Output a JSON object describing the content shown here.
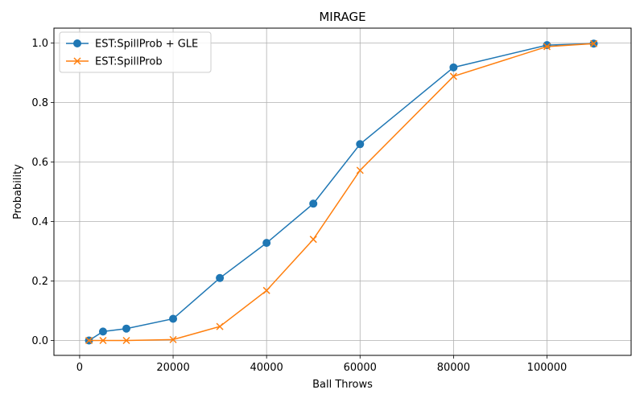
{
  "chart_data": {
    "type": "line",
    "title": "MIRAGE",
    "xlabel": "Ball Throws",
    "ylabel": "Probability",
    "xlim": [
      -5500,
      118000
    ],
    "ylim": [
      -0.05,
      1.05
    ],
    "xticks": [
      0,
      20000,
      40000,
      60000,
      80000,
      100000
    ],
    "yticks": [
      0.0,
      0.2,
      0.4,
      0.6,
      0.8,
      1.0
    ],
    "x_tick_labels": [
      "0",
      "20000",
      "40000",
      "60000",
      "80000",
      "100000"
    ],
    "y_tick_labels": [
      "0.0",
      "0.2",
      "0.4",
      "0.6",
      "0.8",
      "1.0"
    ],
    "grid": true,
    "legend_position": "upper-left",
    "series": [
      {
        "name": "EST:SpillProb + GLE",
        "color": "#1f77b4",
        "marker": "circle",
        "x": [
          2000,
          5000,
          10000,
          20000,
          30000,
          40000,
          50000,
          60000,
          80000,
          100000,
          110000
        ],
        "y": [
          0.0,
          0.03,
          0.04,
          0.073,
          0.21,
          0.328,
          0.46,
          0.66,
          0.918,
          0.993,
          0.998
        ]
      },
      {
        "name": "EST:SpillProb",
        "color": "#ff7f0e",
        "marker": "x",
        "x": [
          2000,
          5000,
          10000,
          20000,
          30000,
          40000,
          50000,
          60000,
          80000,
          100000,
          110000
        ],
        "y": [
          0.0,
          0.0,
          0.0,
          0.003,
          0.047,
          0.168,
          0.34,
          0.572,
          0.888,
          0.988,
          0.998
        ]
      }
    ]
  }
}
